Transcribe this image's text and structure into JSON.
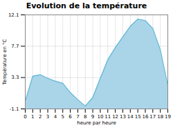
{
  "chart_data": {
    "type": "area",
    "title": "Evolution de la température",
    "x_label": "heure par heure",
    "y_label": "Température en °C",
    "x": [
      0,
      1,
      2,
      3,
      4,
      5,
      6,
      7,
      8,
      9,
      10,
      11,
      12,
      13,
      14,
      15,
      16,
      17,
      18,
      19
    ],
    "series": [
      {
        "type": "area",
        "color": "#aad4e8",
        "values": [
          0.0,
          3.5,
          3.7,
          3.2,
          2.8,
          2.5,
          1.2,
          0.2,
          -0.7,
          0.5,
          3.2,
          5.8,
          7.5,
          9.0,
          10.5,
          11.5,
          11.3,
          10.2,
          7.2,
          2.2
        ]
      },
      {
        "type": "line",
        "color": "#60b8d4",
        "values": [
          0.0,
          3.5,
          3.7,
          3.2,
          2.8,
          2.5,
          1.2,
          0.2,
          -0.7,
          0.5,
          3.2,
          5.8,
          7.5,
          9.0,
          10.5,
          11.5,
          11.3,
          10.2,
          7.2,
          2.2
        ]
      }
    ],
    "xlim": [
      0,
      19
    ],
    "xticks": [
      0,
      1,
      2,
      3,
      4,
      5,
      6,
      7,
      8,
      9,
      10,
      11,
      12,
      13,
      14,
      15,
      16,
      17,
      18,
      19
    ],
    "ylim": [
      -1.1,
      12.1
    ],
    "yticks": [
      -1.1,
      3.3,
      7.7,
      12.1
    ],
    "grid": true
  }
}
